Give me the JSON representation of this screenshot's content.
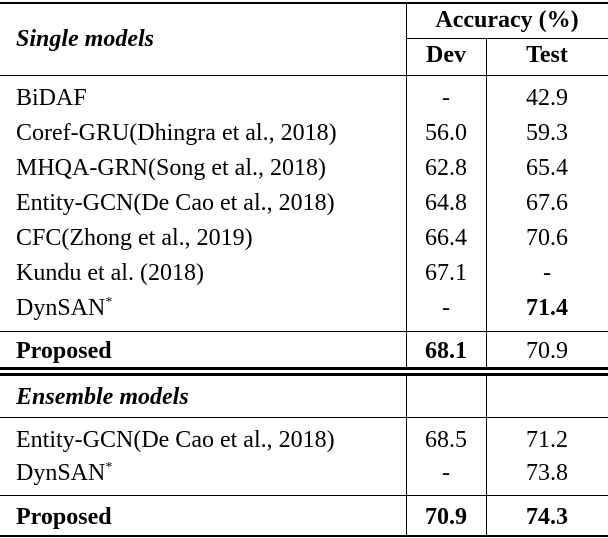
{
  "header": {
    "left_title": "Single models",
    "group_title": "Accuracy (%)",
    "dev": "Dev",
    "test": "Test"
  },
  "single_rows": [
    {
      "model": "BiDAF",
      "sup": "",
      "dev": "-",
      "test": "42.9"
    },
    {
      "model": "Coref-GRU(Dhingra et al., 2018)",
      "sup": "",
      "dev": "56.0",
      "test": "59.3"
    },
    {
      "model": "MHQA-GRN(Song et al., 2018)",
      "sup": "",
      "dev": "62.8",
      "test": "65.4"
    },
    {
      "model": "Entity-GCN(De Cao et al., 2018)",
      "sup": "",
      "dev": "64.8",
      "test": "67.6"
    },
    {
      "model": "CFC(Zhong et al., 2019)",
      "sup": "",
      "dev": "66.4",
      "test": "70.6"
    },
    {
      "model": "Kundu et al. (2018)",
      "sup": "",
      "dev": "67.1",
      "test": "-"
    },
    {
      "model": "DynSAN",
      "sup": "*",
      "dev": "-",
      "test": "71.4"
    }
  ],
  "single_proposed": {
    "model": "Proposed",
    "dev": "68.1",
    "test": "70.9"
  },
  "ensemble_title": "Ensemble models",
  "ensemble_rows": [
    {
      "model": "Entity-GCN(De Cao et al., 2018)",
      "sup": "",
      "dev": "68.5",
      "test": "71.2"
    },
    {
      "model": "DynSAN",
      "sup": "*",
      "dev": "-",
      "test": "73.8"
    }
  ],
  "ensemble_proposed": {
    "model": "Proposed",
    "dev": "70.9",
    "test": "74.3"
  }
}
